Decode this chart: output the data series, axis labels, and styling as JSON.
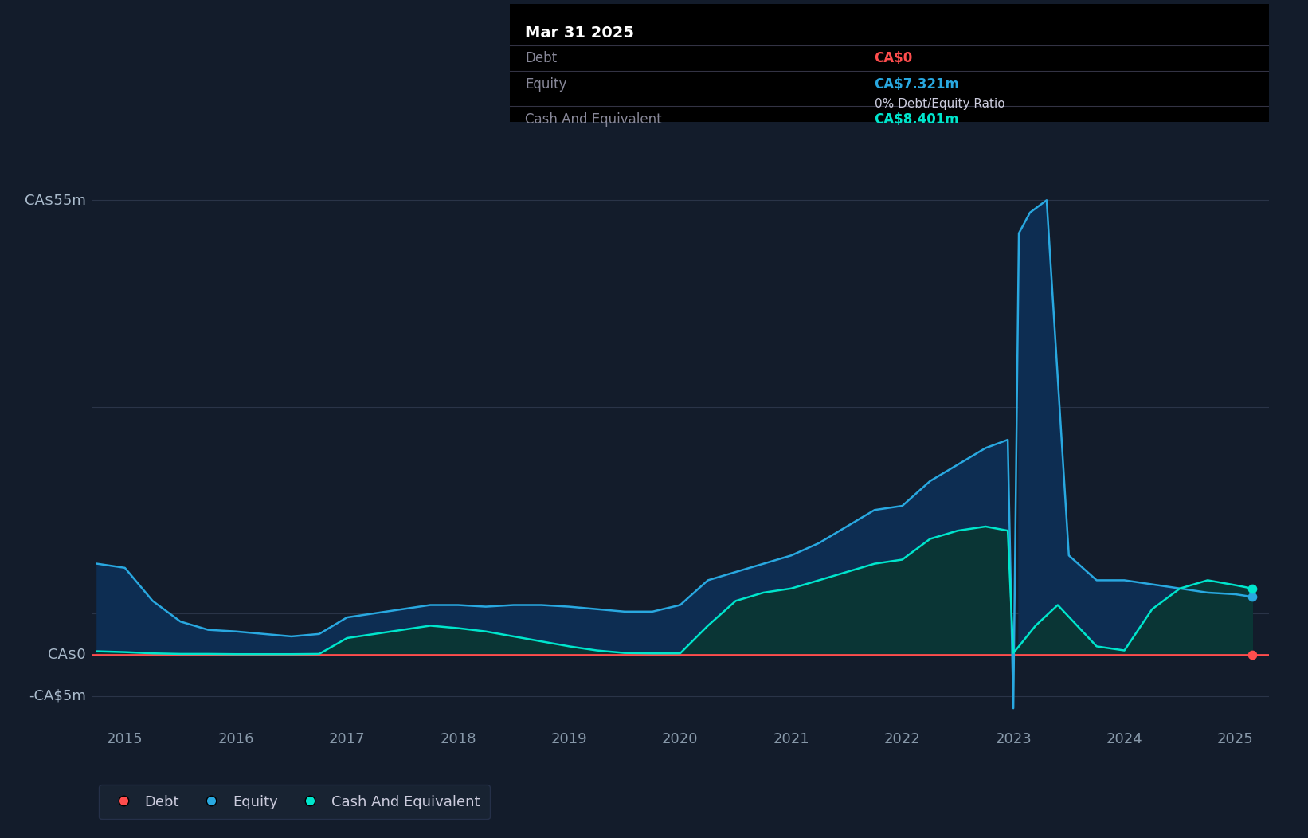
{
  "bg_color": "#131c2b",
  "plot_bg_color": "#131c2b",
  "grid_color": "#2a3448",
  "debt_color": "#ff4d4d",
  "equity_color": "#29a8e0",
  "cash_color": "#00e5cc",
  "equity_fill_color": "#0d2d52",
  "cash_fill_color": "#0a3535",
  "tooltip_title": "Mar 31 2025",
  "tooltip_debt_label": "Debt",
  "tooltip_debt_value": "CA$0",
  "tooltip_equity_label": "Equity",
  "tooltip_equity_value": "CA$7.321m",
  "tooltip_ratio": "0% Debt/Equity Ratio",
  "tooltip_cash_label": "Cash And Equivalent",
  "tooltip_cash_value": "CA$8.401m",
  "ylabel_55": "CA$55m",
  "ylabel_0": "CA$0",
  "ylabel_neg5": "-CA$5m",
  "ylim_min": -8,
  "ylim_max": 63,
  "x_ticks": [
    2015,
    2016,
    2017,
    2018,
    2019,
    2020,
    2021,
    2022,
    2023,
    2024,
    2025
  ],
  "legend_labels": [
    "Debt",
    "Equity",
    "Cash And Equivalent"
  ],
  "equity_x": [
    2014.75,
    2015.0,
    2015.25,
    2015.5,
    2015.75,
    2016.0,
    2016.25,
    2016.5,
    2016.75,
    2017.0,
    2017.25,
    2017.5,
    2017.75,
    2018.0,
    2018.25,
    2018.5,
    2018.75,
    2019.0,
    2019.25,
    2019.5,
    2019.75,
    2020.0,
    2020.25,
    2020.5,
    2020.75,
    2021.0,
    2021.25,
    2021.5,
    2021.75,
    2022.0,
    2022.25,
    2022.5,
    2022.75,
    2022.95,
    2023.0,
    2023.05,
    2023.15,
    2023.3,
    2023.5,
    2023.75,
    2024.0,
    2024.25,
    2024.5,
    2024.75,
    2025.0,
    2025.15
  ],
  "equity_y": [
    11,
    10.5,
    6.5,
    4.0,
    3.0,
    2.8,
    2.5,
    2.2,
    2.5,
    4.5,
    5.0,
    5.5,
    6.0,
    6.0,
    5.8,
    6.0,
    6.0,
    5.8,
    5.5,
    5.2,
    5.2,
    6.0,
    9.0,
    10.0,
    11.0,
    12.0,
    13.5,
    15.5,
    17.5,
    18.0,
    21.0,
    23.0,
    25.0,
    26.0,
    -6.5,
    51.0,
    53.5,
    55.0,
    12.0,
    9.0,
    9.0,
    8.5,
    8.0,
    7.5,
    7.3,
    7.0
  ],
  "cash_x": [
    2014.75,
    2015.0,
    2015.25,
    2015.5,
    2015.75,
    2016.0,
    2016.25,
    2016.5,
    2016.75,
    2017.0,
    2017.25,
    2017.5,
    2017.75,
    2018.0,
    2018.25,
    2018.5,
    2018.75,
    2019.0,
    2019.25,
    2019.5,
    2019.75,
    2020.0,
    2020.25,
    2020.5,
    2020.75,
    2021.0,
    2021.25,
    2021.5,
    2021.75,
    2022.0,
    2022.25,
    2022.5,
    2022.75,
    2022.95,
    2023.0,
    2023.05,
    2023.2,
    2023.4,
    2023.75,
    2024.0,
    2024.25,
    2024.5,
    2024.75,
    2025.0,
    2025.15
  ],
  "cash_y": [
    0.4,
    0.3,
    0.15,
    0.08,
    0.08,
    0.05,
    0.05,
    0.05,
    0.08,
    2.0,
    2.5,
    3.0,
    3.5,
    3.2,
    2.8,
    2.2,
    1.6,
    1.0,
    0.5,
    0.2,
    0.15,
    0.15,
    3.5,
    6.5,
    7.5,
    8.0,
    9.0,
    10.0,
    11.0,
    11.5,
    14.0,
    15.0,
    15.5,
    15.0,
    0.2,
    1.0,
    3.5,
    6.0,
    1.0,
    0.5,
    5.5,
    8.0,
    9.0,
    8.4,
    8.0
  ]
}
